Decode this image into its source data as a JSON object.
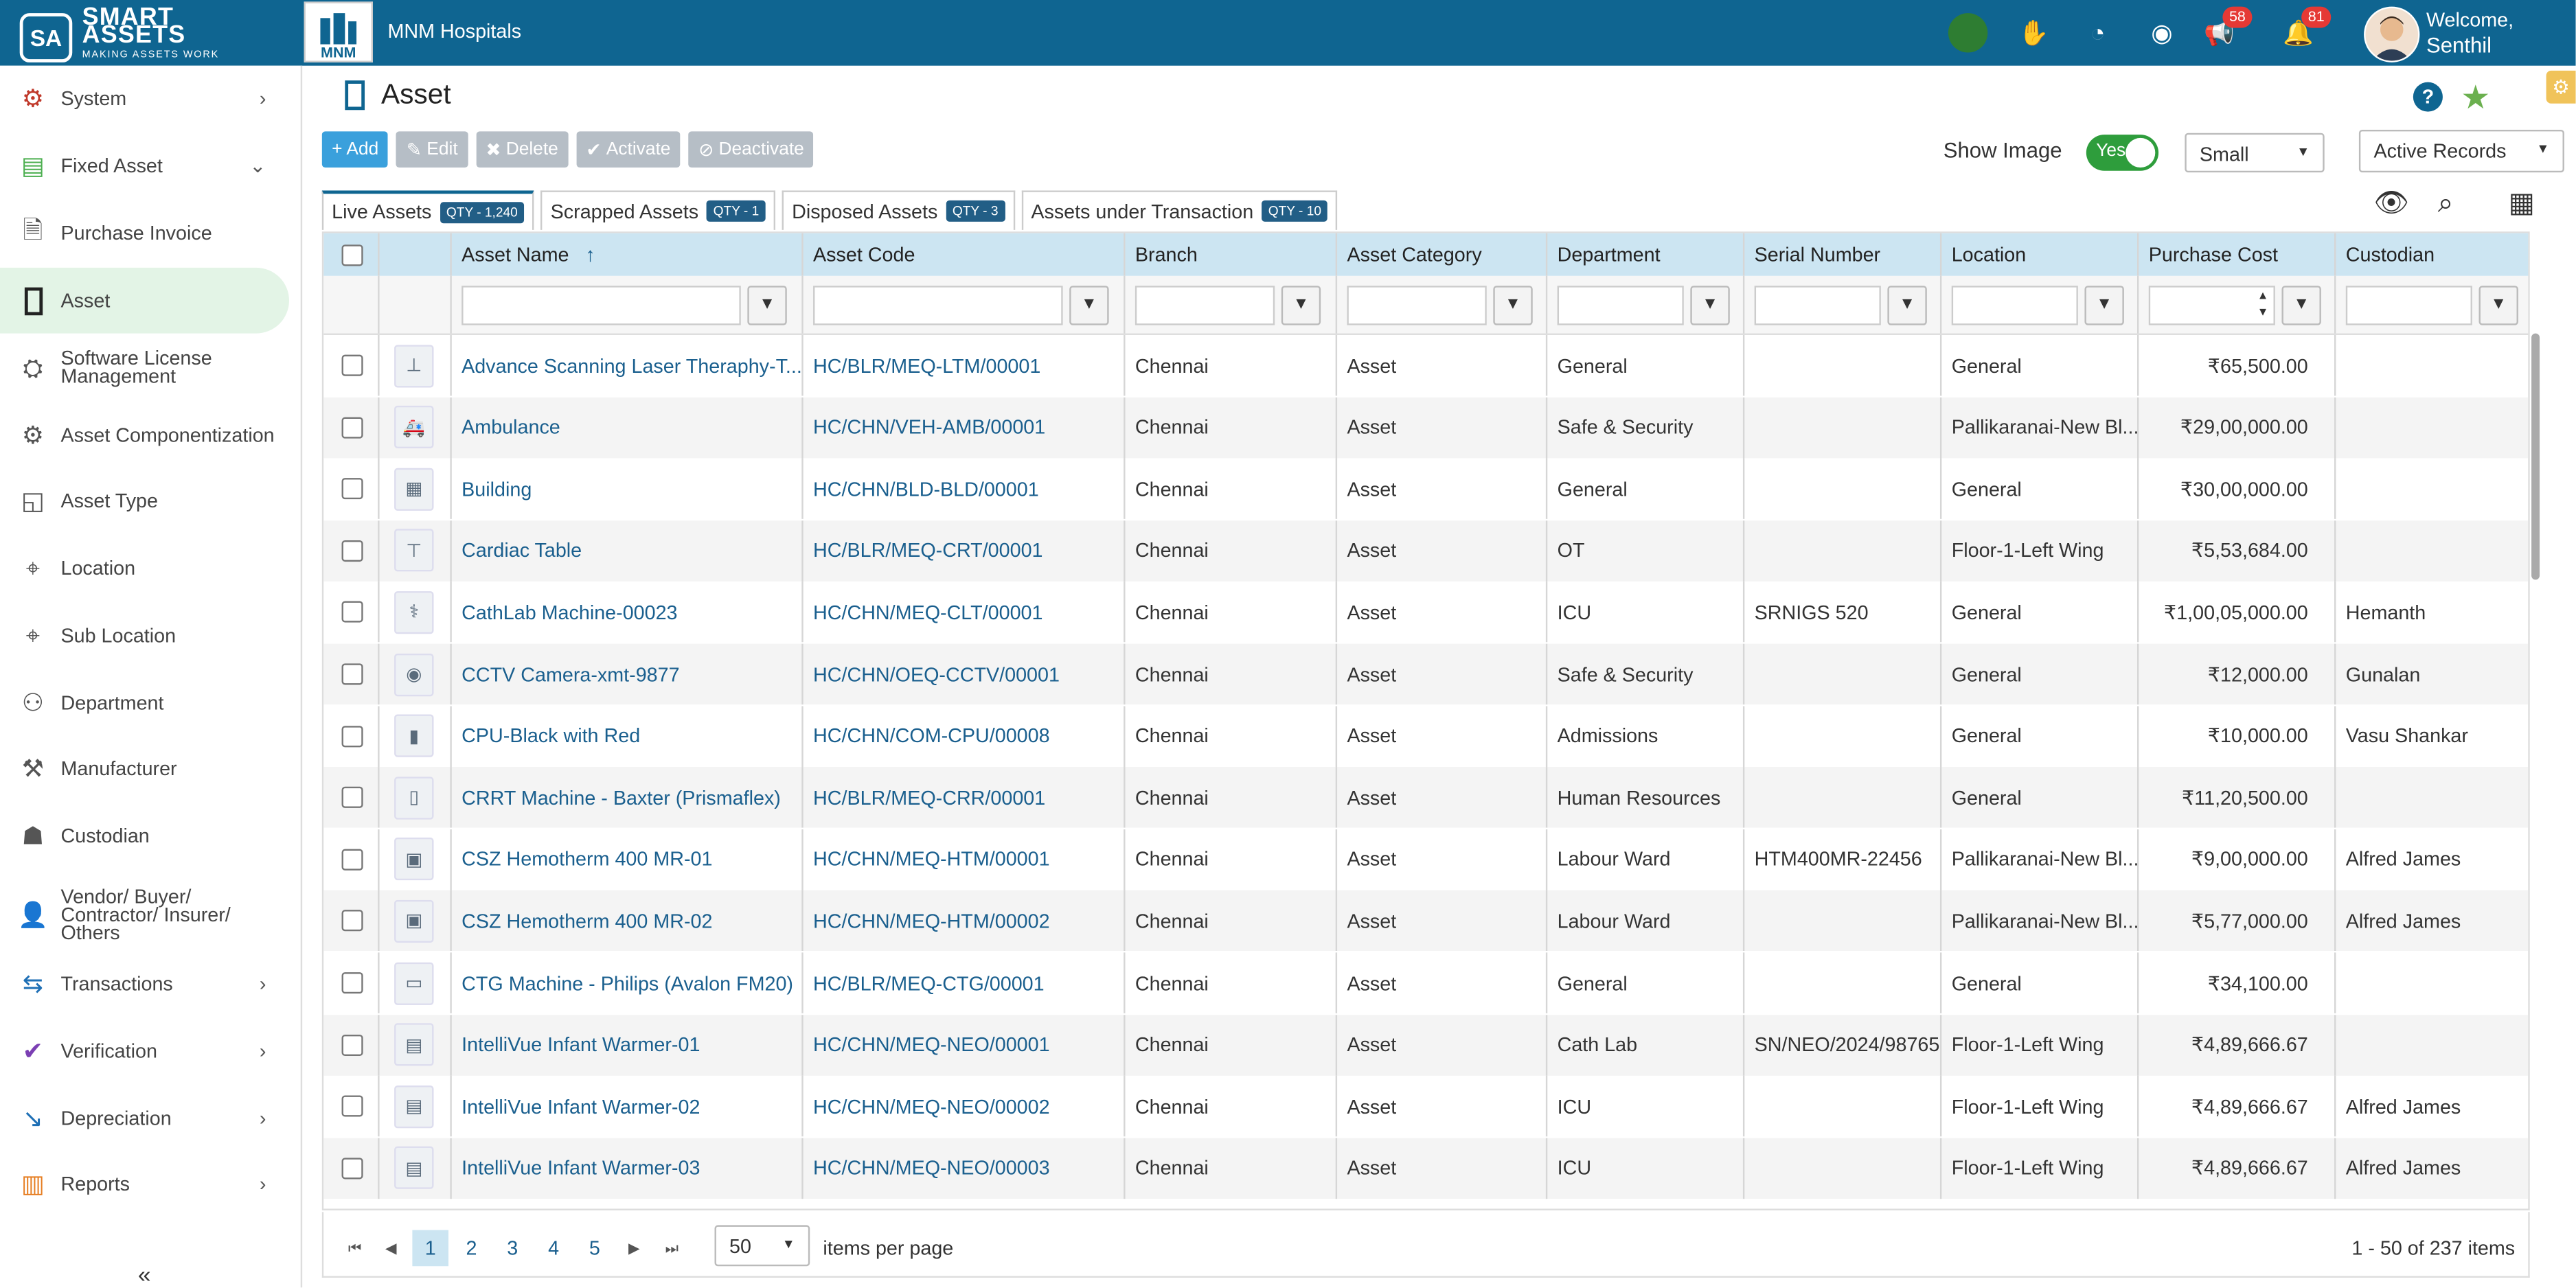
{
  "topbar": {
    "brand_mark": "SA",
    "brand_line1": "SMART",
    "brand_line2": "ASSETS",
    "brand_tagline": "MAKING ASSETS WORK",
    "hospital_logo_text": "MNM",
    "hospital_name": "MNM Hospitals",
    "announcements_count": "58",
    "notifications_count": "81",
    "welcome": "Welcome,",
    "user_name": "Senthil"
  },
  "sidebar": {
    "items": [
      {
        "label": "System"
      },
      {
        "label": "Fixed Asset"
      },
      {
        "label": "Purchase Invoice"
      },
      {
        "label": "Asset"
      },
      {
        "label": "Software License Management"
      },
      {
        "label": "Asset Componentization"
      },
      {
        "label": "Asset Type"
      },
      {
        "label": "Location"
      },
      {
        "label": "Sub Location"
      },
      {
        "label": "Department"
      },
      {
        "label": "Manufacturer"
      },
      {
        "label": "Custodian"
      },
      {
        "label": "Vendor/ Buyer/ Contractor/ Insurer/ Others"
      },
      {
        "label": "Transactions"
      },
      {
        "label": "Verification"
      },
      {
        "label": "Depreciation"
      },
      {
        "label": "Reports"
      }
    ],
    "collapse_glyph": "«"
  },
  "page": {
    "title": "Asset",
    "help_glyph": "?"
  },
  "toolbar": {
    "add": "+ Add",
    "edit": "Edit",
    "delete": "Delete",
    "activate": "Activate",
    "deactivate": "Deactivate",
    "show_image_label": "Show Image",
    "show_image_value": "Yes",
    "size_value": "Small",
    "records_value": "Active Records"
  },
  "tabs": [
    {
      "label": "Live Assets",
      "qty": "QTY - 1,240"
    },
    {
      "label": "Scrapped Assets",
      "qty": "QTY - 1"
    },
    {
      "label": "Disposed Assets",
      "qty": "QTY - 3"
    },
    {
      "label": "Assets under Transaction",
      "qty": "QTY - 10"
    }
  ],
  "table": {
    "headers": [
      "Asset Name",
      "Asset Code",
      "Branch",
      "Asset Category",
      "Department",
      "Serial Number",
      "Location",
      "Purchase Cost",
      "Custodian"
    ],
    "sort_glyph": "↑",
    "rows": [
      [
        "Advance Scanning Laser Theraphy-T...",
        "HC/BLR/MEQ-LTM/00001",
        "Chennai",
        "Asset",
        "General",
        "",
        "General",
        "₹65,500.00",
        ""
      ],
      [
        "Ambulance",
        "HC/CHN/VEH-AMB/00001",
        "Chennai",
        "Asset",
        "Safe & Security",
        "",
        "Pallikaranai-New Bl...",
        "₹29,00,000.00",
        ""
      ],
      [
        "Building",
        "HC/CHN/BLD-BLD/00001",
        "Chennai",
        "Asset",
        "General",
        "",
        "General",
        "₹30,00,000.00",
        ""
      ],
      [
        "Cardiac Table",
        "HC/BLR/MEQ-CRT/00001",
        "Chennai",
        "Asset",
        "OT",
        "",
        "Floor-1-Left Wing",
        "₹5,53,684.00",
        ""
      ],
      [
        "CathLab Machine-00023",
        "HC/CHN/MEQ-CLT/00001",
        "Chennai",
        "Asset",
        "ICU",
        "SRNIGS 520",
        "General",
        "₹1,00,05,000.00",
        "Hemanth"
      ],
      [
        "CCTV Camera-xmt-9877",
        "HC/CHN/OEQ-CCTV/00001",
        "Chennai",
        "Asset",
        "Safe & Security",
        "",
        "General",
        "₹12,000.00",
        "Gunalan"
      ],
      [
        "CPU-Black with Red",
        "HC/CHN/COM-CPU/00008",
        "Chennai",
        "Asset",
        "Admissions",
        "",
        "General",
        "₹10,000.00",
        "Vasu Shankar"
      ],
      [
        "CRRT Machine - Baxter (Prismaflex)",
        "HC/BLR/MEQ-CRR/00001",
        "Chennai",
        "Asset",
        "Human Resources",
        "",
        "General",
        "₹11,20,500.00",
        ""
      ],
      [
        "CSZ Hemotherm 400 MR-01",
        "HC/CHN/MEQ-HTM/00001",
        "Chennai",
        "Asset",
        "Labour Ward",
        "HTM400MR-22456",
        "Pallikaranai-New Bl...",
        "₹9,00,000.00",
        "Alfred James"
      ],
      [
        "CSZ Hemotherm 400 MR-02",
        "HC/CHN/MEQ-HTM/00002",
        "Chennai",
        "Asset",
        "Labour Ward",
        "",
        "Pallikaranai-New Bl...",
        "₹5,77,000.00",
        "Alfred James"
      ],
      [
        "CTG Machine - Philips (Avalon FM20)",
        "HC/BLR/MEQ-CTG/00001",
        "Chennai",
        "Asset",
        "General",
        "",
        "General",
        "₹34,100.00",
        ""
      ],
      [
        "IntelliVue Infant Warmer-01",
        "HC/CHN/MEQ-NEO/00001",
        "Chennai",
        "Asset",
        "Cath Lab",
        "SN/NEO/2024/98765",
        "Floor-1-Left Wing",
        "₹4,89,666.67",
        ""
      ],
      [
        "IntelliVue Infant Warmer-02",
        "HC/CHN/MEQ-NEO/00002",
        "Chennai",
        "Asset",
        "ICU",
        "",
        "Floor-1-Left Wing",
        "₹4,89,666.67",
        "Alfred James"
      ],
      [
        "IntelliVue Infant Warmer-03",
        "HC/CHN/MEQ-NEO/00003",
        "Chennai",
        "Asset",
        "ICU",
        "",
        "Floor-1-Left Wing",
        "₹4,89,666.67",
        "Alfred James"
      ]
    ]
  },
  "pager": {
    "pages": [
      "1",
      "2",
      "3",
      "4",
      "5"
    ],
    "page_size": "50",
    "items_per_page_label": "items per page",
    "range_text": "1 - 50 of 237 items"
  }
}
